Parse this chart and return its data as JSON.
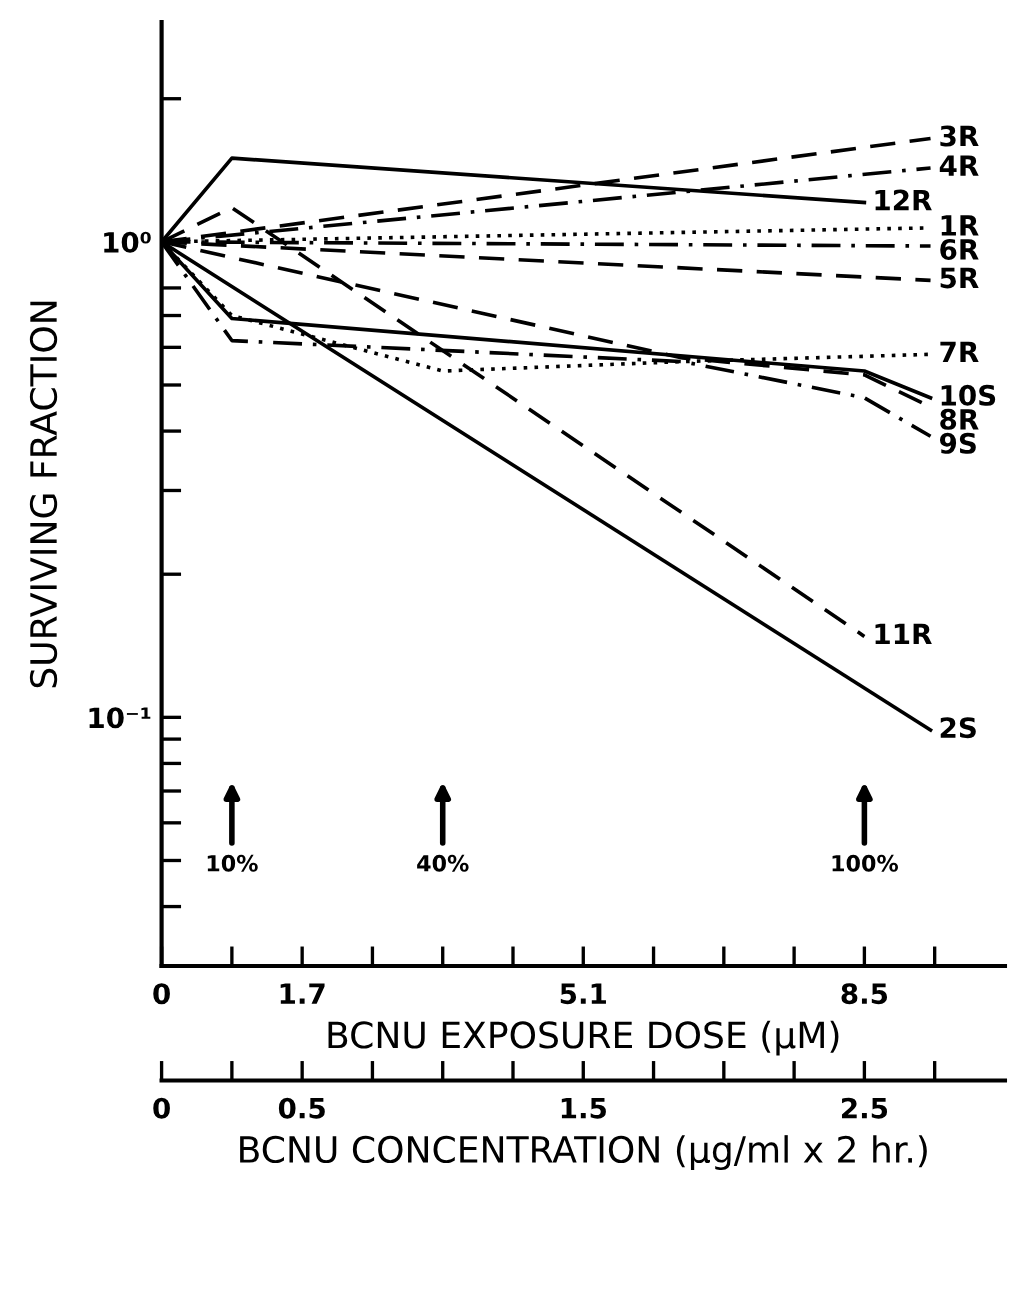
{
  "chart_data": {
    "type": "line",
    "xlabel": "BCNU EXPOSURE DOSE (μM)",
    "ylabel": "SURVIVING FRACTION",
    "x2label": "BCNU CONCENTRATION (μg/ml x 2 hr.)",
    "log": "y",
    "xlim": [
      0,
      10.2
    ],
    "ylim": [
      0.03,
      2.9
    ],
    "xticks": [
      0,
      {
        "value": 0.85,
        "label": null
      },
      1.7,
      {
        "value": 2.55,
        "label": null
      },
      {
        "value": 3.4,
        "label": null
      },
      {
        "value": 4.25,
        "label": null
      },
      5.1,
      {
        "value": 5.95,
        "label": null
      },
      {
        "value": 6.8,
        "label": null
      },
      {
        "value": 7.65,
        "label": null
      },
      8.5,
      {
        "value": 9.35,
        "label": null
      }
    ],
    "yticks": [
      {
        "value": 2,
        "label": null
      },
      {
        "value": 1,
        "label": "10⁰"
      },
      {
        "value": 0.8,
        "label": null
      },
      {
        "value": 0.7,
        "label": null
      },
      {
        "value": 0.6,
        "label": null
      },
      {
        "value": 0.5,
        "label": null
      },
      {
        "value": 0.4,
        "label": null
      },
      {
        "value": 0.3,
        "label": null
      },
      {
        "value": 0.2,
        "label": null
      },
      {
        "value": 0.1,
        "label": "10⁻¹"
      },
      {
        "value": 0.09,
        "label": null
      },
      {
        "value": 0.08,
        "label": null
      },
      {
        "value": 0.07,
        "label": null
      },
      {
        "value": 0.06,
        "label": null
      },
      {
        "value": 0.05,
        "label": null
      },
      {
        "value": 0.04,
        "label": null
      }
    ],
    "x2lim": [
      0,
      3.0
    ],
    "x2ticks": [
      0,
      {
        "value": 0.25,
        "label": null
      },
      0.5,
      {
        "value": 0.75,
        "label": null
      },
      {
        "value": 1.0,
        "label": null
      },
      {
        "value": 1.25,
        "label": null
      },
      1.5,
      {
        "value": 1.75,
        "label": null
      },
      {
        "value": 2.0,
        "label": null
      },
      {
        "value": 2.25,
        "label": null
      },
      2.5,
      {
        "value": 2.75,
        "label": null
      }
    ],
    "grid": false,
    "marker": "none",
    "series": [
      {
        "name": "3R",
        "color": "#000000",
        "line_style": "dashed",
        "x": [
          0,
          9.3
        ],
        "values": [
          1.0,
          1.65
        ]
      },
      {
        "name": "4R",
        "color": "#000000",
        "line_style": "dashdot",
        "x": [
          0,
          9.3
        ],
        "values": [
          1.0,
          1.43
        ]
      },
      {
        "name": "12R",
        "color": "#000000",
        "line_style": "solid",
        "x": [
          0,
          0.85,
          8.5
        ],
        "values": [
          1.0,
          1.5,
          1.21
        ]
      },
      {
        "name": "1R",
        "color": "#000000",
        "line_style": "dotted",
        "x": [
          0,
          9.3
        ],
        "values": [
          1.0,
          1.07
        ]
      },
      {
        "name": "6R",
        "color": "#000000",
        "line_style": "dashdot",
        "x": [
          0,
          9.3
        ],
        "values": [
          1.0,
          0.98
        ]
      },
      {
        "name": "5R",
        "color": "#000000",
        "line_style": "dashed",
        "x": [
          0,
          9.3
        ],
        "values": [
          1.0,
          0.83
        ]
      },
      {
        "name": "7R",
        "color": "#000000",
        "line_style": "dotted",
        "x": [
          0,
          0.85,
          3.4,
          6.3,
          9.3
        ],
        "values": [
          1.0,
          0.7,
          0.535,
          0.56,
          0.58
        ]
      },
      {
        "name": "10S",
        "color": "#000000",
        "line_style": "solid",
        "x": [
          0,
          0.85,
          8.5,
          9.3
        ],
        "values": [
          1.0,
          0.69,
          0.535,
          0.47
        ]
      },
      {
        "name": "8R",
        "color": "#000000",
        "line_style": "dashed",
        "x": [
          0,
          6.3,
          8.5,
          9.3
        ],
        "values": [
          1.0,
          0.57,
          0.525,
          0.45
        ]
      },
      {
        "name": "9S",
        "color": "#000000",
        "line_style": "dashdot",
        "x": [
          0,
          0.85,
          6.3,
          8.5,
          9.3
        ],
        "values": [
          1.0,
          0.62,
          0.56,
          0.47,
          0.39
        ]
      },
      {
        "name": "11R",
        "color": "#000000",
        "line_style": "dashed",
        "x": [
          0,
          0.85,
          8.5
        ],
        "values": [
          1.0,
          1.18,
          0.148
        ]
      },
      {
        "name": "2S",
        "color": "#000000",
        "line_style": "solid",
        "x": [
          0,
          9.3
        ],
        "values": [
          1.0,
          0.094
        ]
      }
    ],
    "annotations": [
      {
        "text": "10%",
        "x": 0.85
      },
      {
        "text": "40%",
        "x": 3.4
      },
      {
        "text": "100%",
        "x": 8.5
      }
    ]
  }
}
